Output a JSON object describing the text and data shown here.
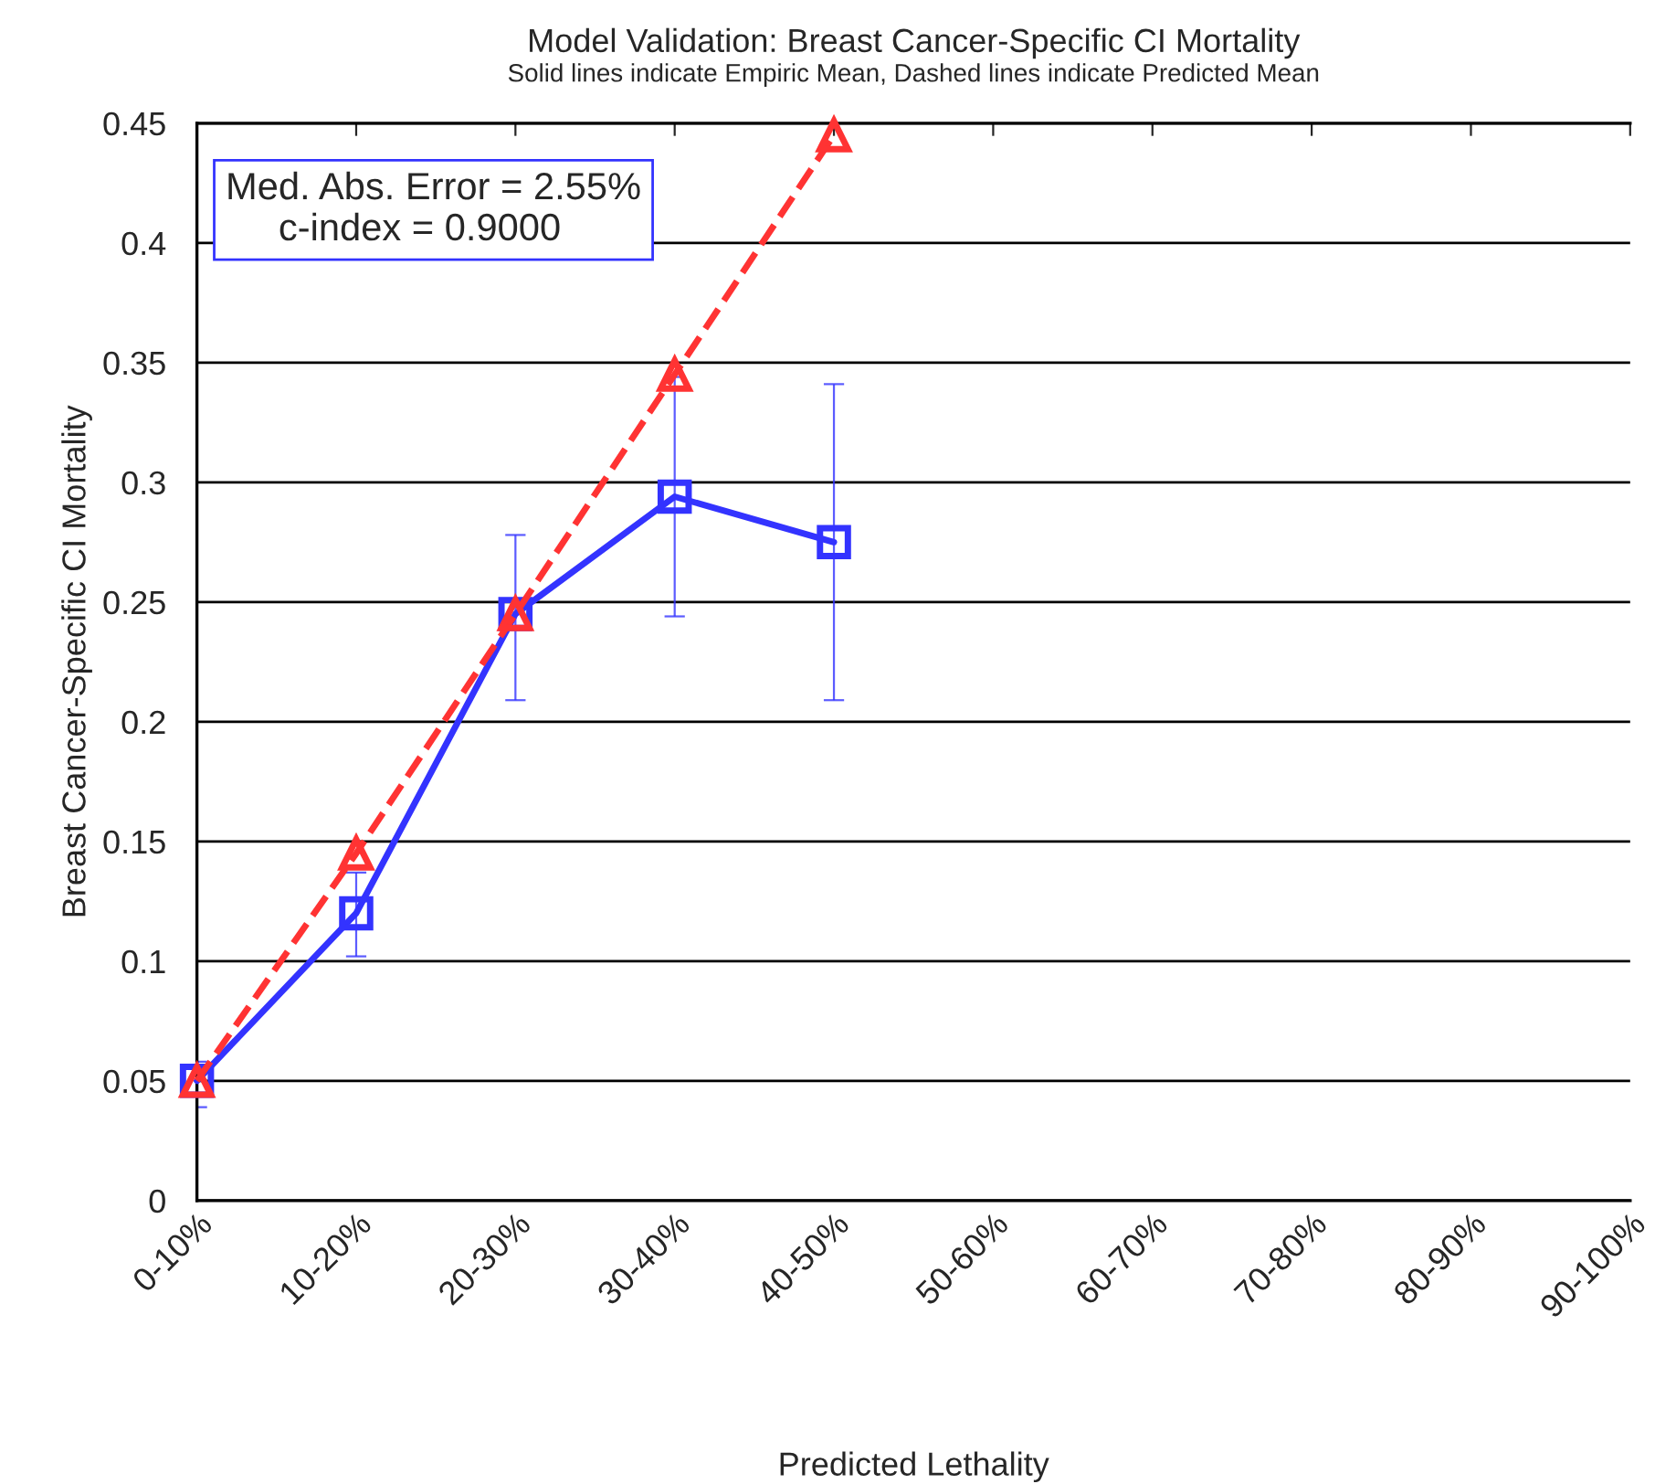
{
  "chart_data": {
    "type": "line",
    "title": "Model Validation: Breast Cancer-Specific CI Mortality",
    "subtitle": "Solid lines indicate Empiric Mean, Dashed lines indicate Predicted Mean",
    "xlabel": "Predicted Lethality",
    "ylabel": "Breast Cancer-Specific CI Mortality",
    "categories": [
      "0-10%",
      "10-20%",
      "20-30%",
      "30-40%",
      "40-50%",
      "50-60%",
      "60-70%",
      "70-80%",
      "80-90%",
      "90-100%"
    ],
    "series": [
      {
        "color": "#3333ff",
        "marker": "square",
        "line_style": "solid",
        "values": [
          0.05,
          0.12,
          0.245,
          0.294,
          0.275,
          null,
          null,
          null,
          null,
          null
        ],
        "errors": [
          [
            0.039,
            0.058
          ],
          [
            0.102,
            0.137
          ],
          [
            0.209,
            0.278
          ],
          [
            0.244,
            0.344
          ],
          [
            0.209,
            0.341
          ],
          null,
          null,
          null,
          null,
          null
        ]
      },
      {
        "color": "#ff3333",
        "marker": "triangle",
        "line_style": "dashed",
        "values": [
          0.05,
          0.145,
          0.245,
          0.345,
          0.445,
          null,
          null,
          null,
          null,
          null
        ]
      }
    ],
    "ylim": [
      0,
      0.45
    ],
    "yticks": [
      0,
      0.05,
      0.1,
      0.15,
      0.2,
      0.25,
      0.3,
      0.35,
      0.4,
      0.45
    ],
    "grid": "y",
    "annotations": [
      "Med. Abs. Error = 2.55%\n     c-index = 0.9000"
    ]
  }
}
